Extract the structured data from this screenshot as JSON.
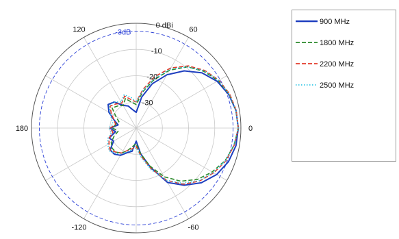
{
  "chart_data": {
    "type": "polar",
    "title": "",
    "radial_unit_label": "0 dBi",
    "radial_range_db": [
      -40,
      0
    ],
    "radial_ticks": [
      {
        "value": 0,
        "label": "0 dBi"
      },
      {
        "value": -10,
        "label": "-10"
      },
      {
        "value": -20,
        "label": "-20"
      },
      {
        "value": -30,
        "label": "-30"
      }
    ],
    "angular_ticks": [
      {
        "deg": 0,
        "label": "0"
      },
      {
        "deg": 60,
        "label": "60"
      },
      {
        "deg": 120,
        "label": "120"
      },
      {
        "deg": 180,
        "label": "180"
      },
      {
        "deg": -120,
        "label": "-120"
      },
      {
        "deg": -60,
        "label": "-60"
      }
    ],
    "reference_ring": {
      "value": -3,
      "label": "-3dB",
      "color": "#2a3fd6"
    },
    "legend": {
      "position": "right",
      "entries": [
        "900 MHz",
        "1800 MHz",
        "2200 MHz",
        "2500 MHz"
      ]
    },
    "series": [
      {
        "name": "900 MHz",
        "color": "#1f3fbf",
        "dash": "solid",
        "angles": [
          0,
          10,
          20,
          30,
          40,
          50,
          60,
          70,
          80,
          90,
          100,
          110,
          120,
          130,
          140,
          150,
          160,
          170,
          180,
          -170,
          -160,
          -150,
          -140,
          -130,
          -120,
          -110,
          -100,
          -90,
          -80,
          -70,
          -60,
          -50,
          -40,
          -30,
          -20,
          -10
        ],
        "gains_db": [
          -1,
          -1.3,
          -2.4,
          -4.3,
          -7.2,
          -11.5,
          -16.5,
          -22,
          -28,
          -34,
          -33,
          -31,
          -30,
          -27,
          -26,
          -28,
          -31,
          -33,
          -30,
          -32,
          -29,
          -30,
          -27,
          -27,
          -28,
          -30,
          -31,
          -35,
          -30,
          -24,
          -16,
          -11.5,
          -7.5,
          -4.5,
          -2.5,
          -1.3
        ]
      },
      {
        "name": "1800 MHz",
        "color": "#2b8a2b",
        "dash": "dashed",
        "angles": [
          0,
          10,
          20,
          30,
          40,
          50,
          60,
          70,
          80,
          90,
          100,
          110,
          120,
          130,
          140,
          150,
          160,
          170,
          180,
          -170,
          -160,
          -150,
          -140,
          -130,
          -120,
          -110,
          -100,
          -90,
          -80,
          -70,
          -60,
          -50,
          -40,
          -30,
          -20,
          -10
        ],
        "gains_db": [
          -1,
          -1.3,
          -2.2,
          -3.8,
          -6.3,
          -9.5,
          -14.5,
          -20.5,
          -26,
          -31,
          -30,
          -28,
          -30,
          -29,
          -28,
          -31,
          -33,
          -32,
          -31,
          -33,
          -31,
          -29,
          -28,
          -28,
          -29,
          -31,
          -33,
          -34,
          -30,
          -24.5,
          -18.5,
          -13.5,
          -9.5,
          -6.5,
          -3.8,
          -2
        ]
      },
      {
        "name": "2200 MHz",
        "color": "#e23a2a",
        "dash": "dashed",
        "angles": [
          0,
          10,
          20,
          30,
          40,
          50,
          60,
          70,
          80,
          90,
          100,
          110,
          120,
          130,
          140,
          150,
          160,
          170,
          180,
          -170,
          -160,
          -150,
          -140,
          -130,
          -120,
          -110,
          -100,
          -90,
          -80,
          -70,
          -60,
          -50,
          -40,
          -30,
          -20,
          -10
        ],
        "gains_db": [
          -1,
          -1.2,
          -2,
          -3.5,
          -5.8,
          -9,
          -13.5,
          -19,
          -25,
          -30,
          -29,
          -27,
          -29,
          -28,
          -27,
          -29,
          -31,
          -32,
          -30,
          -31,
          -29,
          -28,
          -27,
          -28,
          -29,
          -31,
          -32,
          -33,
          -29,
          -23.5,
          -17,
          -12,
          -8.5,
          -5.8,
          -3.5,
          -2
        ]
      },
      {
        "name": "2500 MHz",
        "color": "#35c7e6",
        "dash": "dotted",
        "angles": [
          0,
          10,
          20,
          30,
          40,
          50,
          60,
          70,
          80,
          90,
          100,
          110,
          120,
          130,
          140,
          150,
          160,
          170,
          180,
          -170,
          -160,
          -150,
          -140,
          -130,
          -120,
          -110,
          -100,
          -90,
          -80,
          -70,
          -60,
          -50,
          -40,
          -30,
          -20,
          -10
        ],
        "gains_db": [
          -1,
          -1.3,
          -2.2,
          -3.6,
          -6,
          -9.5,
          -14,
          -20,
          -25.5,
          -30,
          -28,
          -26.5,
          -28.5,
          -27,
          -26.5,
          -28.5,
          -30,
          -31,
          -29.5,
          -30.5,
          -28.5,
          -27.5,
          -26.5,
          -27.5,
          -28.5,
          -30.5,
          -31.5,
          -32.5,
          -28.5,
          -23,
          -17,
          -12.5,
          -8.7,
          -6,
          -3.7,
          -2.2
        ]
      }
    ]
  }
}
